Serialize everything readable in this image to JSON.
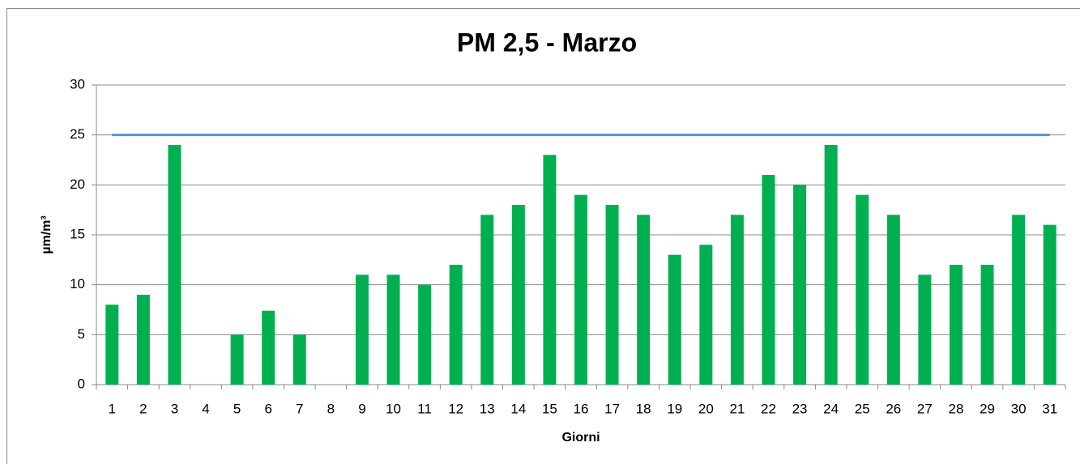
{
  "chart_data": {
    "type": "bar",
    "title": "PM 2,5 - Marzo",
    "x_label": "Giorni",
    "y_label": "µm/m³",
    "categories": [
      "1",
      "2",
      "3",
      "4",
      "5",
      "6",
      "7",
      "8",
      "9",
      "10",
      "11",
      "12",
      "13",
      "14",
      "15",
      "16",
      "17",
      "18",
      "19",
      "20",
      "21",
      "22",
      "23",
      "24",
      "25",
      "26",
      "27",
      "28",
      "29",
      "30",
      "31"
    ],
    "series": [
      {
        "type": "bar",
        "color": "#00b050",
        "values": [
          8,
          9,
          24,
          null,
          5,
          7.4,
          5,
          null,
          11,
          11,
          10,
          12,
          17,
          18,
          23,
          19,
          18,
          17,
          13,
          14,
          17,
          21,
          20,
          24,
          19,
          17,
          11,
          12,
          12,
          17,
          16
        ]
      },
      {
        "type": "line",
        "color": "#4f97d1",
        "values": [
          25,
          25,
          25,
          25,
          25,
          25,
          25,
          25,
          25,
          25,
          25,
          25,
          25,
          25,
          25,
          25,
          25,
          25,
          25,
          25,
          25,
          25,
          25,
          25,
          25,
          25,
          25,
          25,
          25,
          25,
          25
        ]
      }
    ],
    "ylim": [
      0,
      30
    ],
    "yticks": [
      0,
      5,
      10,
      15,
      20,
      25,
      30
    ],
    "grid": true
  }
}
